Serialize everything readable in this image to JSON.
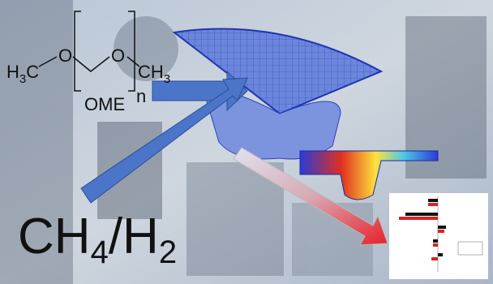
{
  "formula": {
    "left": [
      "H",
      "3",
      "C"
    ],
    "oxygen": [
      "O",
      "O"
    ],
    "right": [
      "CH",
      "3"
    ],
    "name": "OME",
    "repeat": "n"
  },
  "fuel": [
    "CH",
    "4",
    "/H",
    "2"
  ]
}
